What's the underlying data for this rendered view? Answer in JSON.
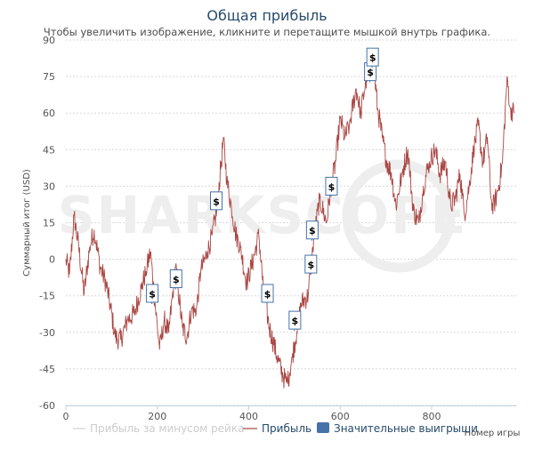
{
  "chart_data": {
    "type": "line",
    "title": "Общая прибыль",
    "subtitle": "Чтобы увеличить изображение, кликните и перетащите мышкой внутрь графика.",
    "ylabel": "Суммарный итог (USD)",
    "xlabel": "Номер игры",
    "xlim": [
      0,
      985
    ],
    "ylim": [
      -60,
      90
    ],
    "x_ticks": [
      0,
      200,
      400,
      600,
      800
    ],
    "y_ticks": [
      90,
      75,
      60,
      45,
      30,
      15,
      0,
      -15,
      -30,
      -45,
      -60
    ],
    "grid": "horizontal dashed",
    "watermark": "SHARKSCOPE",
    "series": [
      {
        "name": "Прибыль",
        "color": "#aa4643",
        "anchors": [
          [
            0,
            0
          ],
          [
            8,
            -6
          ],
          [
            18,
            18
          ],
          [
            28,
            5
          ],
          [
            40,
            -14
          ],
          [
            52,
            5
          ],
          [
            62,
            12
          ],
          [
            75,
            -3
          ],
          [
            88,
            -10
          ],
          [
            98,
            -20
          ],
          [
            108,
            -32
          ],
          [
            120,
            -33
          ],
          [
            135,
            -25
          ],
          [
            150,
            -22
          ],
          [
            165,
            -12
          ],
          [
            175,
            -5
          ],
          [
            185,
            3
          ],
          [
            195,
            -18
          ],
          [
            205,
            -37
          ],
          [
            215,
            -25
          ],
          [
            225,
            -30
          ],
          [
            240,
            -3
          ],
          [
            255,
            -28
          ],
          [
            265,
            -32
          ],
          [
            275,
            -20
          ],
          [
            285,
            -22
          ],
          [
            295,
            -5
          ],
          [
            310,
            3
          ],
          [
            320,
            10
          ],
          [
            330,
            20
          ],
          [
            340,
            40
          ],
          [
            345,
            50
          ],
          [
            352,
            32
          ],
          [
            362,
            22
          ],
          [
            372,
            10
          ],
          [
            382,
            5
          ],
          [
            395,
            -10
          ],
          [
            410,
            0
          ],
          [
            422,
            10
          ],
          [
            432,
            -12
          ],
          [
            445,
            -28
          ],
          [
            455,
            -35
          ],
          [
            465,
            -42
          ],
          [
            475,
            -48
          ],
          [
            485,
            -51
          ],
          [
            495,
            -40
          ],
          [
            505,
            -30
          ],
          [
            515,
            -18
          ],
          [
            530,
            -15
          ],
          [
            540,
            5
          ],
          [
            555,
            25
          ],
          [
            570,
            15
          ],
          [
            580,
            30
          ],
          [
            590,
            40
          ],
          [
            600,
            58
          ],
          [
            610,
            50
          ],
          [
            620,
            55
          ],
          [
            635,
            70
          ],
          [
            645,
            60
          ],
          [
            655,
            72
          ],
          [
            670,
            85
          ],
          [
            682,
            62
          ],
          [
            692,
            50
          ],
          [
            702,
            40
          ],
          [
            712,
            35
          ],
          [
            722,
            22
          ],
          [
            735,
            35
          ],
          [
            748,
            45
          ],
          [
            760,
            20
          ],
          [
            772,
            15
          ],
          [
            782,
            30
          ],
          [
            795,
            40
          ],
          [
            808,
            45
          ],
          [
            818,
            35
          ],
          [
            830,
            40
          ],
          [
            842,
            22
          ],
          [
            852,
            25
          ],
          [
            862,
            35
          ],
          [
            872,
            18
          ],
          [
            882,
            30
          ],
          [
            892,
            45
          ],
          [
            902,
            55
          ],
          [
            912,
            40
          ],
          [
            922,
            50
          ],
          [
            932,
            20
          ],
          [
            945,
            28
          ],
          [
            955,
            40
          ],
          [
            965,
            75
          ],
          [
            972,
            62
          ],
          [
            980,
            60
          ]
        ]
      },
      {
        "name": "Прибыль за минусом рейка",
        "color": "#c8c8c8",
        "visible": false
      }
    ],
    "flags": {
      "name": "Значительные выигрыши",
      "color": "#4572a7",
      "label": "$",
      "points": [
        [
          188,
          -14
        ],
        [
          240,
          -8
        ],
        [
          328,
          24
        ],
        [
          440,
          -14
        ],
        [
          500,
          -25
        ],
        [
          535,
          -2
        ],
        [
          538,
          12
        ],
        [
          580,
          30
        ],
        [
          665,
          77
        ],
        [
          670,
          83
        ]
      ]
    },
    "legend": {
      "position": "bottom",
      "items": [
        "Прибыль за минусом рейка",
        "Прибыль",
        "Значительные выигрыши"
      ]
    }
  }
}
